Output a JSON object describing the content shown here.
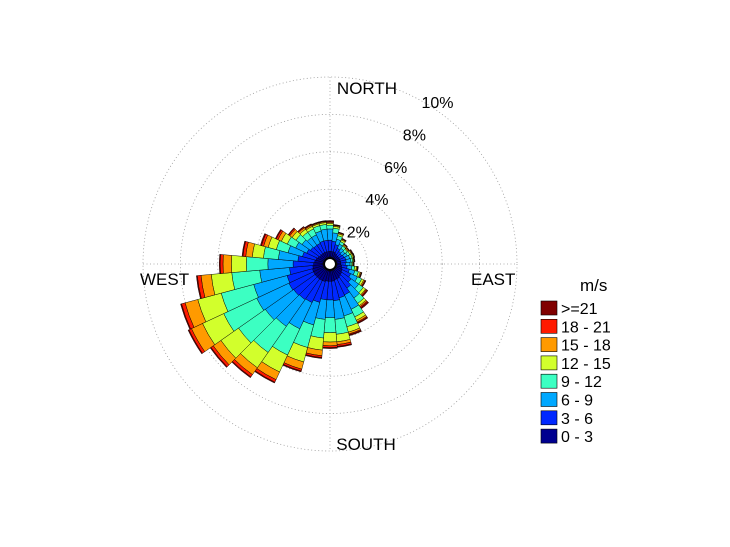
{
  "chart_data": {
    "type": "windrose",
    "directions": {
      "north": "NORTH",
      "east": "EAST",
      "south": "SOUTH",
      "west": "WEST"
    },
    "rings": [
      {
        "value": 2,
        "label": "2%"
      },
      {
        "value": 4,
        "label": "4%"
      },
      {
        "value": 6,
        "label": "6%"
      },
      {
        "value": 8,
        "label": "8%"
      },
      {
        "value": 10,
        "label": "10%"
      }
    ],
    "max_percent": 10,
    "grid": true,
    "legend_position": "right",
    "legend": {
      "title": "m/s",
      "bins": [
        {
          "label": ">=21",
          "color": "#800000"
        },
        {
          "label": "18 - 21",
          "color": "#ff1a00"
        },
        {
          "label": "15 - 18",
          "color": "#ff9a00"
        },
        {
          "label": "12 - 15",
          "color": "#d2ff2c"
        },
        {
          "label": "9 - 12",
          "color": "#3cffc2"
        },
        {
          "label": "6 - 9",
          "color": "#00a8ff"
        },
        {
          "label": "3 - 6",
          "color": "#0028ff"
        },
        {
          "label": "0 - 3",
          "color": "#00008f"
        }
      ]
    },
    "sectors": [
      {
        "direction_deg": 0,
        "cumulative": [
          0.3,
          0.9,
          1.5,
          1.7,
          1.8,
          1.85,
          1.9,
          1.95
        ]
      },
      {
        "direction_deg": 10,
        "cumulative": [
          0.3,
          0.85,
          1.3,
          1.55,
          1.65,
          1.7,
          1.72,
          1.75
        ]
      },
      {
        "direction_deg": 20,
        "cumulative": [
          0.3,
          0.7,
          1.0,
          1.2,
          1.3,
          1.35,
          1.38,
          1.4
        ]
      },
      {
        "direction_deg": 30,
        "cumulative": [
          0.25,
          0.55,
          0.8,
          0.95,
          1.05,
          1.1,
          1.12,
          1.15
        ]
      },
      {
        "direction_deg": 40,
        "cumulative": [
          0.2,
          0.45,
          0.65,
          0.8,
          0.85,
          0.9,
          0.92,
          0.95
        ]
      },
      {
        "direction_deg": 50,
        "cumulative": [
          0.2,
          0.4,
          0.6,
          0.75,
          0.8,
          0.85,
          0.88,
          0.9
        ]
      },
      {
        "direction_deg": 60,
        "cumulative": [
          0.2,
          0.45,
          0.65,
          0.8,
          0.88,
          0.92,
          0.95,
          0.98
        ]
      },
      {
        "direction_deg": 70,
        "cumulative": [
          0.2,
          0.5,
          0.72,
          0.85,
          0.92,
          0.96,
          0.98,
          1.0
        ]
      },
      {
        "direction_deg": 80,
        "cumulative": [
          0.2,
          0.5,
          0.75,
          0.85,
          0.9,
          0.93,
          0.95,
          0.97
        ]
      },
      {
        "direction_deg": 90,
        "cumulative": [
          0.2,
          0.45,
          0.7,
          0.8,
          0.85,
          0.88,
          0.9,
          0.92
        ]
      },
      {
        "direction_deg": 100,
        "cumulative": [
          0.25,
          0.55,
          0.8,
          0.95,
          1.05,
          1.1,
          1.12,
          1.15
        ]
      },
      {
        "direction_deg": 110,
        "cumulative": [
          0.3,
          0.7,
          1.0,
          1.2,
          1.3,
          1.35,
          1.38,
          1.4
        ]
      },
      {
        "direction_deg": 120,
        "cumulative": [
          0.35,
          0.85,
          1.25,
          1.5,
          1.62,
          1.68,
          1.72,
          1.75
        ]
      },
      {
        "direction_deg": 130,
        "cumulative": [
          0.4,
          1.0,
          1.5,
          1.8,
          1.95,
          2.0,
          2.05,
          2.1
        ]
      },
      {
        "direction_deg": 140,
        "cumulative": [
          0.45,
          1.2,
          1.85,
          2.2,
          2.35,
          2.42,
          2.48,
          2.55
        ]
      },
      {
        "direction_deg": 150,
        "cumulative": [
          0.5,
          1.45,
          2.3,
          2.75,
          2.95,
          3.05,
          3.1,
          3.15
        ]
      },
      {
        "direction_deg": 160,
        "cumulative": [
          0.5,
          1.5,
          2.5,
          3.1,
          3.4,
          3.5,
          3.55,
          3.6
        ]
      },
      {
        "direction_deg": 170,
        "cumulative": [
          0.55,
          1.6,
          2.6,
          3.4,
          3.8,
          3.95,
          4.05,
          4.1
        ]
      },
      {
        "direction_deg": 180,
        "cumulative": [
          0.55,
          1.55,
          2.5,
          3.3,
          3.8,
          4.0,
          4.1,
          4.15
        ]
      },
      {
        "direction_deg": 190,
        "cumulative": [
          0.55,
          1.55,
          2.6,
          3.6,
          4.25,
          4.55,
          4.65,
          4.7
        ]
      },
      {
        "direction_deg": 200,
        "cumulative": [
          0.6,
          1.75,
          3.0,
          4.25,
          5.05,
          5.45,
          5.55,
          5.6
        ]
      },
      {
        "direction_deg": 210,
        "cumulative": [
          0.6,
          1.9,
          3.45,
          5.0,
          6.0,
          6.45,
          6.6,
          6.65
        ]
      },
      {
        "direction_deg": 220,
        "cumulative": [
          0.6,
          1.95,
          3.7,
          5.4,
          6.4,
          6.85,
          7.0,
          7.05
        ]
      },
      {
        "direction_deg": 230,
        "cumulative": [
          0.6,
          2.0,
          3.85,
          5.6,
          6.75,
          7.25,
          7.4,
          7.45
        ]
      },
      {
        "direction_deg": 240,
        "cumulative": [
          0.6,
          2.05,
          3.95,
          5.9,
          7.15,
          7.8,
          7.95,
          8.0
        ]
      },
      {
        "direction_deg": 250,
        "cumulative": [
          0.6,
          2.0,
          3.85,
          5.65,
          6.95,
          7.65,
          7.85,
          7.9
        ]
      },
      {
        "direction_deg": 260,
        "cumulative": [
          0.55,
          1.8,
          3.4,
          4.9,
          6.0,
          6.55,
          6.75,
          6.8
        ]
      },
      {
        "direction_deg": 270,
        "cumulative": [
          0.5,
          1.6,
          2.95,
          4.1,
          4.9,
          5.35,
          5.5,
          5.55
        ]
      },
      {
        "direction_deg": 280,
        "cumulative": [
          0.45,
          1.35,
          2.4,
          3.2,
          3.8,
          4.15,
          4.3,
          4.35
        ]
      },
      {
        "direction_deg": 290,
        "cumulative": [
          0.4,
          1.15,
          1.95,
          2.6,
          3.05,
          3.3,
          3.42,
          3.48
        ]
      },
      {
        "direction_deg": 300,
        "cumulative": [
          0.35,
          1.0,
          1.65,
          2.15,
          2.5,
          2.7,
          2.8,
          2.85
        ]
      },
      {
        "direction_deg": 310,
        "cumulative": [
          0.3,
          0.9,
          1.45,
          1.85,
          2.1,
          2.25,
          2.32,
          2.36
        ]
      },
      {
        "direction_deg": 320,
        "cumulative": [
          0.3,
          0.85,
          1.35,
          1.7,
          1.9,
          2.0,
          2.05,
          2.08
        ]
      },
      {
        "direction_deg": 330,
        "cumulative": [
          0.3,
          0.85,
          1.35,
          1.7,
          1.85,
          1.92,
          1.96,
          2.0
        ]
      },
      {
        "direction_deg": 340,
        "cumulative": [
          0.3,
          0.9,
          1.45,
          1.75,
          1.85,
          1.9,
          1.93,
          1.96
        ]
      },
      {
        "direction_deg": 350,
        "cumulative": [
          0.3,
          0.9,
          1.5,
          1.75,
          1.85,
          1.9,
          1.93,
          1.96
        ]
      }
    ]
  }
}
